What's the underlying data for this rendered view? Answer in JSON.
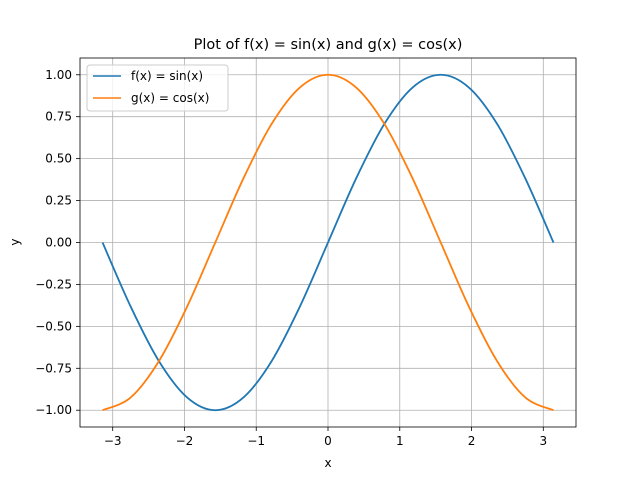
{
  "chart_data": {
    "type": "line",
    "title": "Plot of f(x) = sin(x) and g(x) = cos(x)",
    "xlabel": "x",
    "ylabel": "y",
    "xlim": [
      -3.4558,
      3.4558
    ],
    "ylim": [
      -1.1,
      1.1
    ],
    "x_ticks": [
      -3,
      -2,
      -1,
      0,
      1,
      2,
      3
    ],
    "x_tick_labels": [
      "−3",
      "−2",
      "−1",
      "0",
      "1",
      "2",
      "3"
    ],
    "y_ticks": [
      -1.0,
      -0.75,
      -0.5,
      -0.25,
      0.0,
      0.25,
      0.5,
      0.75,
      1.0
    ],
    "y_tick_labels": [
      "−1.00",
      "−0.75",
      "−0.50",
      "−0.25",
      "0.00",
      "0.25",
      "0.50",
      "0.75",
      "1.00"
    ],
    "grid": true,
    "legend_position": "top-left",
    "x": [
      -3.14159,
      -2.74889,
      -2.35619,
      -1.9635,
      -1.5708,
      -1.1781,
      -0.7854,
      -0.3927,
      0.0,
      0.3927,
      0.7854,
      1.1781,
      1.5708,
      1.9635,
      2.35619,
      2.74889,
      3.14159
    ],
    "series": [
      {
        "name": "f(x) = sin(x)",
        "color": "#1f77b4",
        "values": [
          0.0,
          -0.3827,
          -0.7071,
          -0.9239,
          -1.0,
          -0.9239,
          -0.7071,
          -0.3827,
          0.0,
          0.3827,
          0.7071,
          0.9239,
          1.0,
          0.9239,
          0.7071,
          0.3827,
          0.0
        ]
      },
      {
        "name": "g(x) = cos(x)",
        "color": "#ff7f0e",
        "values": [
          -1.0,
          -0.9239,
          -0.7071,
          -0.3827,
          0.0,
          0.3827,
          0.7071,
          0.9239,
          1.0,
          0.9239,
          0.7071,
          0.3827,
          0.0,
          -0.3827,
          -0.7071,
          -0.9239,
          -1.0
        ]
      }
    ]
  }
}
